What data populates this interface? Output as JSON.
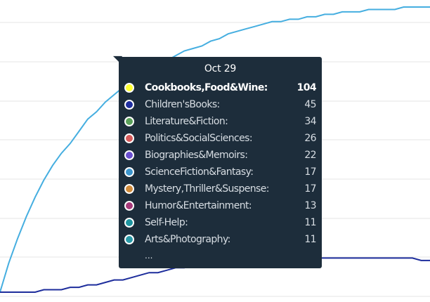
{
  "chart_data": {
    "type": "line",
    "grid": true,
    "gridlines_y_px_hint": "horizontal",
    "series": [
      {
        "color": "#45aee0",
        "values": [
          0,
          12,
          22,
          31,
          39,
          46,
          52,
          57,
          61,
          66,
          71,
          74,
          78,
          81,
          84,
          87,
          89,
          91,
          93,
          95,
          97,
          99,
          100,
          101,
          103,
          104,
          106,
          107,
          108,
          109,
          110,
          111,
          111,
          112,
          112,
          113,
          113,
          114,
          114,
          115,
          115,
          115,
          116,
          116,
          116,
          116,
          117,
          117,
          117,
          117
        ]
      },
      {
        "color": "#1d2d9c",
        "values": [
          0,
          0,
          0,
          0,
          0,
          1,
          1,
          1,
          2,
          2,
          3,
          3,
          4,
          5,
          5,
          6,
          7,
          8,
          8,
          9,
          10,
          10,
          11,
          11,
          12,
          12,
          13,
          13,
          13,
          14,
          14,
          14,
          14,
          14,
          14,
          15,
          14,
          14,
          14,
          14,
          14,
          14,
          14,
          14,
          14,
          14,
          14,
          14,
          13,
          13
        ]
      }
    ]
  },
  "tooltip": {
    "title": "Oct  29",
    "more": "...",
    "items": [
      {
        "label": "Cookbooks,Food&Wine:",
        "value": "104",
        "color": "#ffff33",
        "highlight": true
      },
      {
        "label": "Children'sBooks:",
        "value": "45",
        "color": "#1f2ea0"
      },
      {
        "label": "Literature&Fiction:",
        "value": "34",
        "color": "#5aa05a"
      },
      {
        "label": "Politics&SocialSciences:",
        "value": "26",
        "color": "#d65a5a"
      },
      {
        "label": "Biographies&Memoirs:",
        "value": "22",
        "color": "#6a4fcf"
      },
      {
        "label": "ScienceFiction&Fantasy:",
        "value": "17",
        "color": "#3c95cc"
      },
      {
        "label": "Mystery,Thriller&Suspense:",
        "value": "17",
        "color": "#cf8a3a"
      },
      {
        "label": "Humor&Entertainment:",
        "value": "13",
        "color": "#a63a7a"
      },
      {
        "label": "Self-Help:",
        "value": "11",
        "color": "#1e95a0"
      },
      {
        "label": "Arts&Photography:",
        "value": "11",
        "color": "#2a9aa8"
      }
    ]
  }
}
